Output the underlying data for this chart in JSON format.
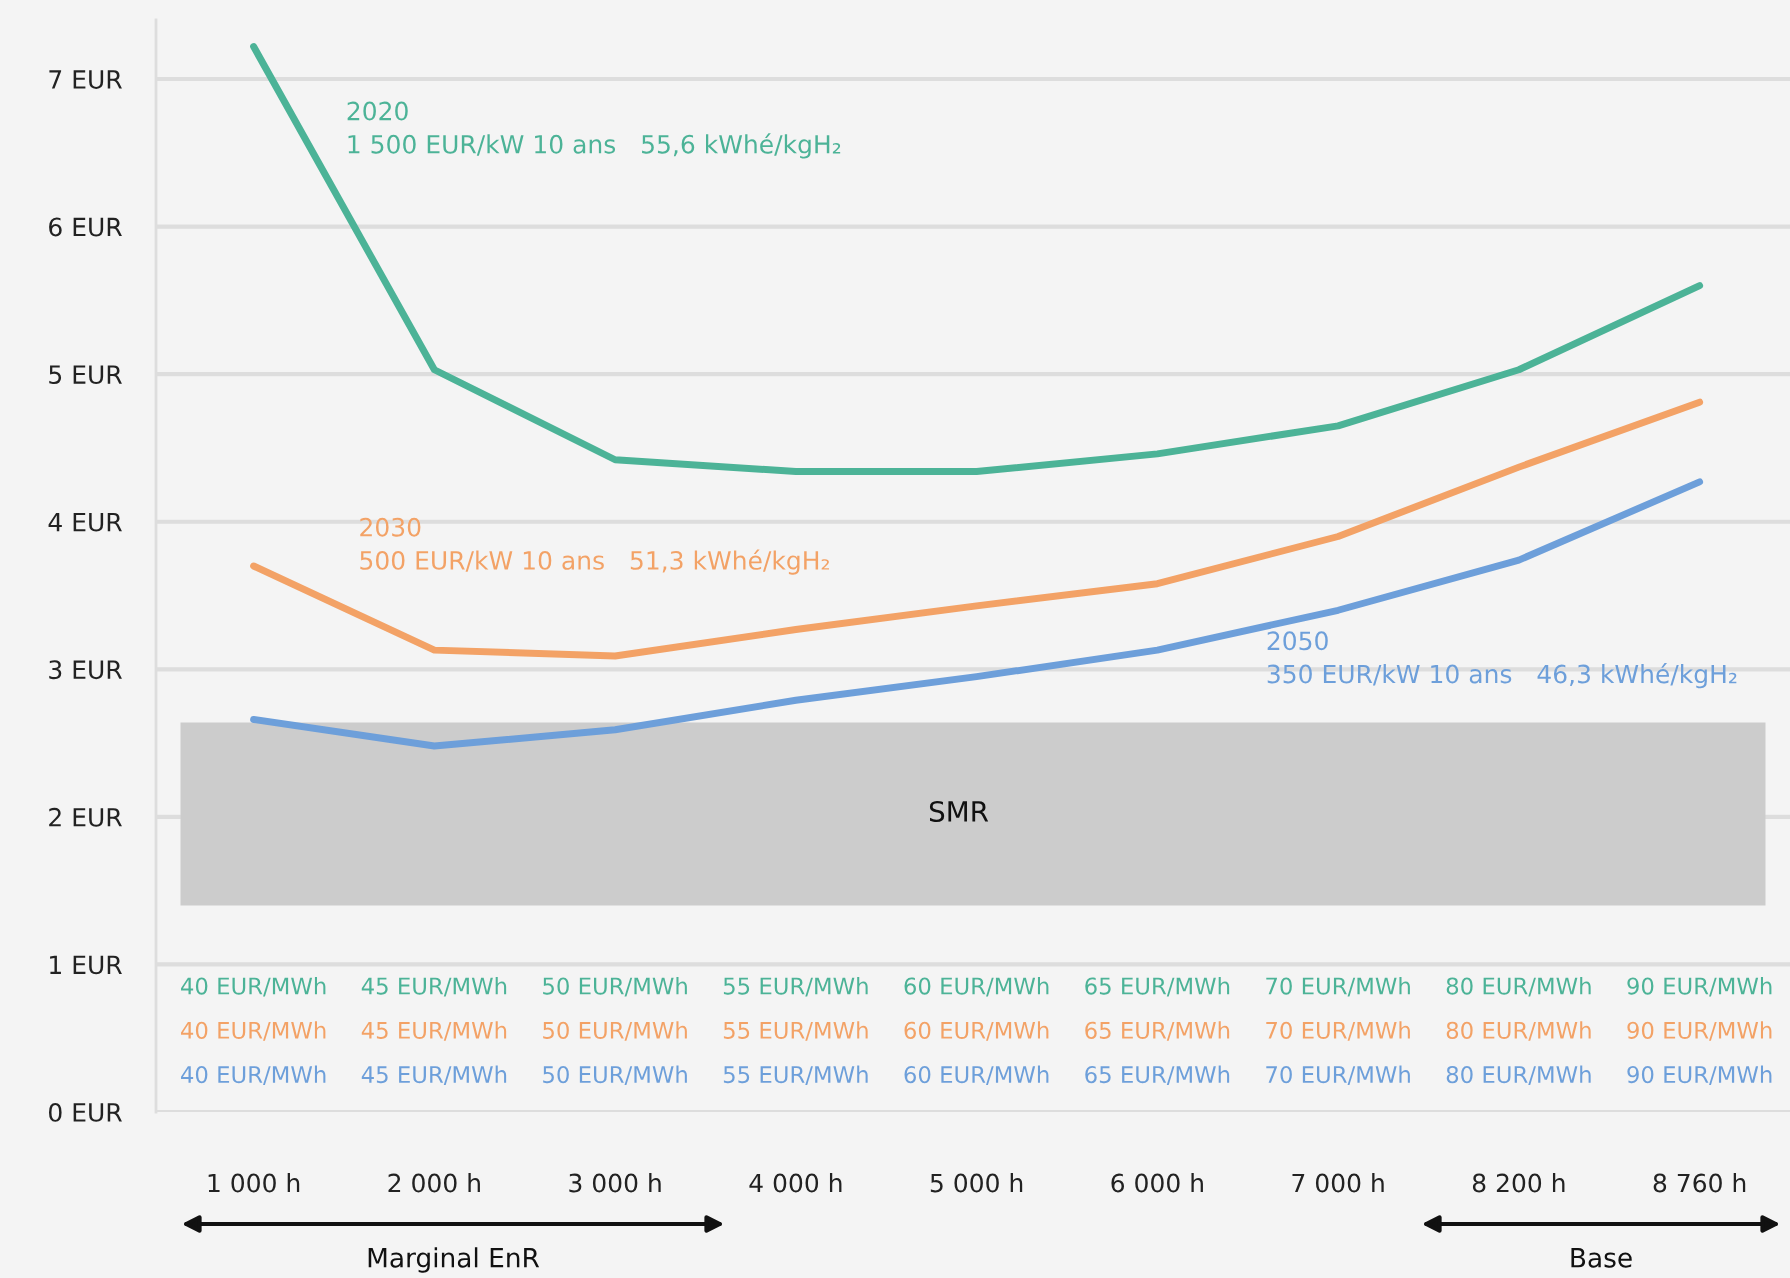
{
  "chart_data": {
    "type": "line",
    "categories": [
      "1 000 h",
      "2 000 h",
      "3 000 h",
      "4 000 h",
      "5 000 h",
      "6 000 h",
      "7 000 h",
      "8 200 h",
      "8 760 h"
    ],
    "series": [
      {
        "name": "2020\n1 500 EUR/kW 10 ans   55,6 kWhé/kgH₂",
        "color": "#4cb397",
        "values": [
          7.22,
          5.03,
          4.42,
          4.34,
          4.34,
          4.46,
          4.65,
          5.03,
          5.6
        ]
      },
      {
        "name": "2030\n500 EUR/kW 10 ans   51,3 kWhé/kgH₂",
        "color": "#f3a266",
        "values": [
          3.7,
          3.13,
          3.09,
          3.27,
          3.43,
          3.58,
          3.9,
          4.37,
          4.81
        ]
      },
      {
        "name": "2050\n350 EUR/kW 10 ans   46,3 kWhé/kgH₂",
        "color": "#6d9fda",
        "values": [
          2.66,
          2.48,
          2.59,
          2.79,
          2.95,
          3.13,
          3.4,
          3.74,
          4.27
        ]
      }
    ],
    "ylim": [
      0,
      7.4
    ],
    "yticks": [
      {
        "value": 0,
        "label": "0 EUR"
      },
      {
        "value": 1,
        "label": "1 EUR"
      },
      {
        "value": 2,
        "label": "2 EUR"
      },
      {
        "value": 3,
        "label": "3 EUR"
      },
      {
        "value": 4,
        "label": "4 EUR"
      },
      {
        "value": 5,
        "label": "5 EUR"
      },
      {
        "value": 6,
        "label": "6 EUR"
      },
      {
        "value": 7,
        "label": "7 EUR"
      }
    ],
    "grid": "y",
    "bands": [
      {
        "axis": "y",
        "from": 1.4,
        "to": 2.64,
        "label": "SMR",
        "color": "#cccccc"
      }
    ],
    "annotations": [
      "40 EUR/MWh",
      "45 EUR/MWh",
      "50 EUR/MWh",
      "55 EUR/MWh",
      "60 EUR/MWh",
      "65 EUR/MWh",
      "70 EUR/MWh",
      "80 EUR/MWh",
      "90 EUR/MWh",
      "40 EUR/MWh",
      "45 EUR/MWh",
      "50 EUR/MWh",
      "55 EUR/MWh",
      "60 EUR/MWh",
      "65 EUR/MWh",
      "70 EUR/MWh",
      "80 EUR/MWh",
      "90 EUR/MWh",
      "40 EUR/MWh",
      "45 EUR/MWh",
      "50 EUR/MWh",
      "55 EUR/MWh",
      "60 EUR/MWh",
      "65 EUR/MWh",
      "70 EUR/MWh",
      "80 EUR/MWh",
      "90 EUR/MWh",
      "Marginal EnR",
      "Base"
    ]
  }
}
